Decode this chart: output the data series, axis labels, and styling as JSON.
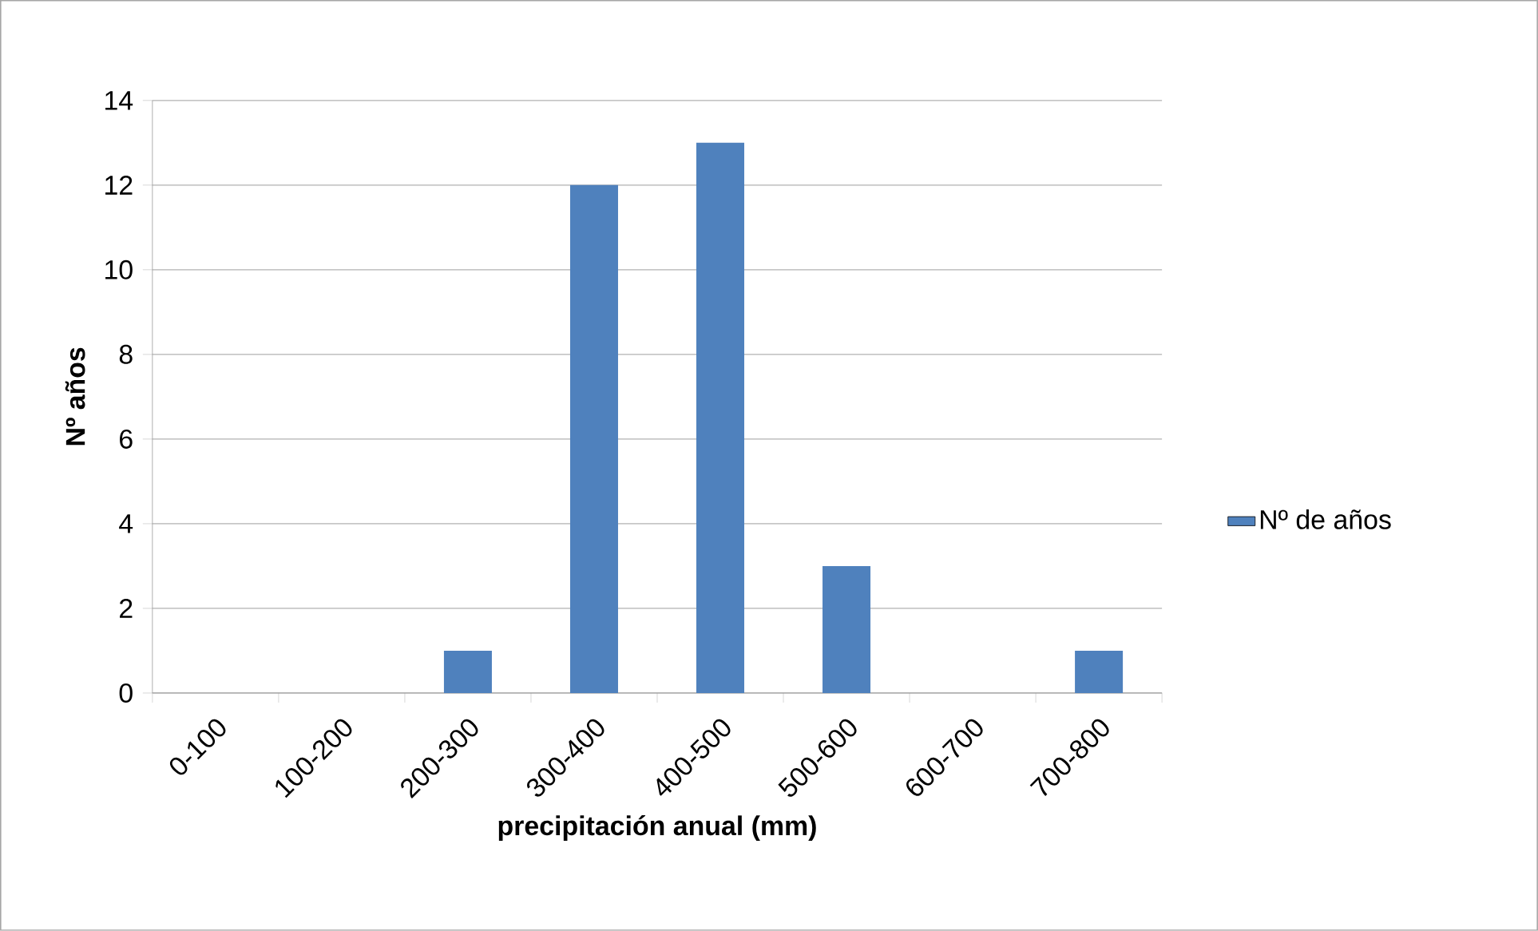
{
  "chart_data": {
    "type": "bar",
    "xlabel": "precipitación anual (mm)",
    "ylabel": "Nº años",
    "categories": [
      "0-100",
      "100-200",
      "200-300",
      "300-400",
      "400-500",
      "500-600",
      "600-700",
      "700-800"
    ],
    "series": [
      {
        "name": "Nº de años",
        "color": "#4f81bd",
        "values": [
          0,
          0,
          1,
          12,
          13,
          3,
          0,
          1
        ]
      }
    ],
    "ylim": [
      0,
      14
    ],
    "yticks": [
      0,
      2,
      4,
      6,
      8,
      10,
      12,
      14
    ],
    "grid": "y",
    "legend": "right"
  }
}
